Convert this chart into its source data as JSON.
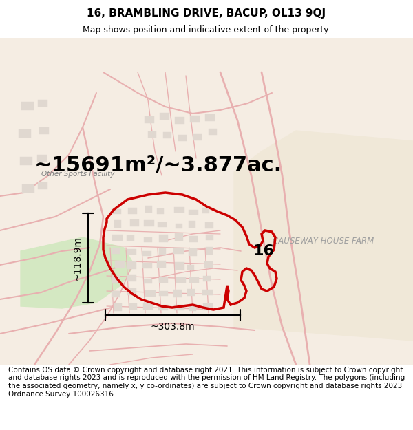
{
  "title_line1": "16, BRAMBLING DRIVE, BACUP, OL13 9QJ",
  "title_line2": "Map shows position and indicative extent of the property.",
  "area_text": "~15691m²/~3.877ac.",
  "label_16": "16",
  "label_width": "~303.8m",
  "label_height": "~118.9m",
  "label_other_sports": "Other Sports Facility",
  "label_causeway": "CAUSEWAY HOUSE FARM",
  "footer_text": "Contains OS data © Crown copyright and database right 2021. This information is subject to Crown copyright and database rights 2023 and is reproduced with the permission of HM Land Registry. The polygons (including the associated geometry, namely x, y co-ordinates) are subject to Crown copyright and database rights 2023 Ordnance Survey 100026316.",
  "map_bg": "#f5ede3",
  "red_color": "#cc0000",
  "road_color": "#e8b0b0",
  "building_color": "#e0d8d0",
  "building_edge": "#c8c0b8",
  "park_color": "#d4e8c2",
  "field_color": "#f0e8d8",
  "title_fontsize": 11,
  "subtitle_fontsize": 9,
  "area_fontsize": 22,
  "label_fontsize": 16,
  "footer_fontsize": 7.5,
  "dim_fontsize": 10,
  "map_label_fontsize": 7.5,
  "causeway_fontsize": 8.5,
  "red_lw": 2.5,
  "dim_lw": 1.5,
  "fig_width": 6.0,
  "fig_height": 6.25,
  "dpi": 100
}
